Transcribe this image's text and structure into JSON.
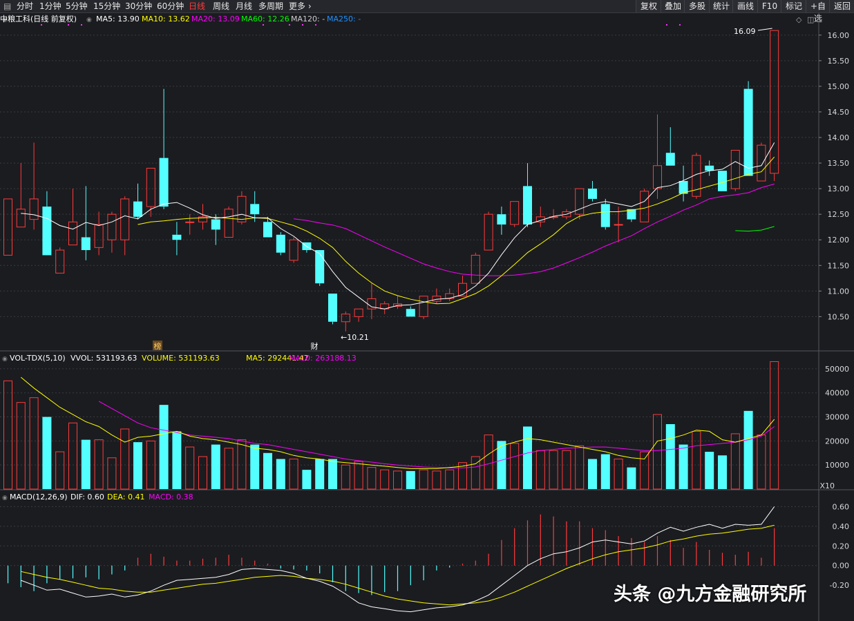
{
  "toolbar": {
    "left_items": [
      "分时",
      "1分钟",
      "5分钟",
      "15分钟",
      "30分钟",
      "60分钟",
      "日线",
      "周线",
      "月线",
      "多周期",
      "更多"
    ],
    "active": "日线",
    "right_items": [
      "复权",
      "叠加",
      "多股",
      "统计",
      "画线",
      "F10",
      "标记",
      "+自选",
      "返回"
    ]
  },
  "legend_price": {
    "title": "中粮工科(日线 前复权)",
    "items": [
      {
        "label": "MA5: 13.90",
        "color": "#ffffff"
      },
      {
        "label": "MA10: 13.62",
        "color": "#ffff00"
      },
      {
        "label": "MA20: 13.09",
        "color": "#ff00ff"
      },
      {
        "label": "MA60: 12.26",
        "color": "#00ff00"
      },
      {
        "label": "MA120: -",
        "color": "#cccccc"
      },
      {
        "label": "MA250: -",
        "color": "#1e90ff"
      }
    ]
  },
  "legend_volume": {
    "title": "VOL-TDX(5,10)",
    "items": [
      {
        "label": "VVOL: 531193.63",
        "color": "#ffffff"
      },
      {
        "label": "VOLUME: 531193.63",
        "color": "#ffff00"
      },
      {
        "label": "MA5: 292441.47",
        "color": "#ffff00"
      },
      {
        "label": "MA10: 263188.13",
        "color": "#ff00ff"
      }
    ]
  },
  "legend_macd": {
    "title": "MACD(12,26,9)",
    "items": [
      {
        "label": "DIF: 0.60",
        "color": "#ffffff"
      },
      {
        "label": "DEA: 0.41",
        "color": "#ffff00"
      },
      {
        "label": "MACD: 0.38",
        "color": "#ff00ff"
      }
    ]
  },
  "annotations": {
    "high_label": "16.09",
    "low_label": "10.21",
    "marker_bang": "榜",
    "marker_cai": "财",
    "volume_unit": "X10"
  },
  "watermark": "头条 @九方金融研究所",
  "colors": {
    "up": "#ff3b3b",
    "down": "#54ffff",
    "ma5": "#ffffff",
    "ma10": "#ffff00",
    "ma20": "#ff00ff",
    "ma60": "#00ff00",
    "grid": "#3a3b40"
  },
  "chart_data": [
    {
      "type": "candlestick",
      "title": "中粮工科(日线 前复权)",
      "y_ticks": [
        10.5,
        11.0,
        11.5,
        12.0,
        12.5,
        13.0,
        13.5,
        14.0,
        14.5,
        15.0,
        15.5,
        16.0
      ],
      "ylim": [
        10.1,
        16.2
      ],
      "candles": [
        {
          "o": 11.7,
          "h": 12.8,
          "l": 11.7,
          "c": 12.8
        },
        {
          "o": 12.25,
          "h": 13.5,
          "l": 12.25,
          "c": 12.6
        },
        {
          "o": 12.4,
          "h": 13.9,
          "l": 12.2,
          "c": 12.8
        },
        {
          "o": 12.65,
          "h": 12.95,
          "l": 11.7,
          "c": 11.7
        },
        {
          "o": 11.35,
          "h": 11.85,
          "l": 11.35,
          "c": 11.8
        },
        {
          "o": 11.9,
          "h": 13.0,
          "l": 11.9,
          "c": 12.35
        },
        {
          "o": 12.05,
          "h": 13.05,
          "l": 11.6,
          "c": 11.8
        },
        {
          "o": 11.85,
          "h": 12.55,
          "l": 11.7,
          "c": 12.3
        },
        {
          "o": 12.0,
          "h": 12.55,
          "l": 11.75,
          "c": 12.5
        },
        {
          "o": 12.0,
          "h": 12.85,
          "l": 11.7,
          "c": 12.8
        },
        {
          "o": 12.75,
          "h": 13.1,
          "l": 12.4,
          "c": 12.45
        },
        {
          "o": 12.65,
          "h": 13.4,
          "l": 12.45,
          "c": 13.4
        },
        {
          "o": 13.6,
          "h": 14.95,
          "l": 12.6,
          "c": 12.65
        },
        {
          "o": 12.1,
          "h": 12.35,
          "l": 11.7,
          "c": 12.0
        },
        {
          "o": 12.35,
          "h": 12.5,
          "l": 12.1,
          "c": 12.35
        },
        {
          "o": 12.35,
          "h": 12.7,
          "l": 12.2,
          "c": 12.45
        },
        {
          "o": 12.4,
          "h": 12.5,
          "l": 11.9,
          "c": 12.2
        },
        {
          "o": 12.05,
          "h": 12.65,
          "l": 12.05,
          "c": 12.6
        },
        {
          "o": 12.35,
          "h": 12.95,
          "l": 12.3,
          "c": 12.85
        },
        {
          "o": 12.7,
          "h": 12.95,
          "l": 12.35,
          "c": 12.5
        },
        {
          "o": 12.35,
          "h": 12.45,
          "l": 12.05,
          "c": 12.05
        },
        {
          "o": 12.1,
          "h": 12.15,
          "l": 11.7,
          "c": 11.75
        },
        {
          "o": 11.6,
          "h": 12.05,
          "l": 11.55,
          "c": 12.0
        },
        {
          "o": 11.95,
          "h": 11.95,
          "l": 11.75,
          "c": 11.8
        },
        {
          "o": 11.8,
          "h": 11.8,
          "l": 11.1,
          "c": 11.15
        },
        {
          "o": 10.95,
          "h": 10.95,
          "l": 10.35,
          "c": 10.4
        },
        {
          "o": 10.4,
          "h": 10.6,
          "l": 10.21,
          "c": 10.55
        },
        {
          "o": 10.5,
          "h": 10.65,
          "l": 10.4,
          "c": 10.65
        },
        {
          "o": 10.65,
          "h": 11.15,
          "l": 10.45,
          "c": 10.85
        },
        {
          "o": 10.65,
          "h": 10.8,
          "l": 10.55,
          "c": 10.75
        },
        {
          "o": 10.7,
          "h": 10.9,
          "l": 10.65,
          "c": 10.75
        },
        {
          "o": 10.65,
          "h": 10.7,
          "l": 10.5,
          "c": 10.5
        },
        {
          "o": 10.5,
          "h": 10.9,
          "l": 10.45,
          "c": 10.9
        },
        {
          "o": 10.8,
          "h": 11.05,
          "l": 10.75,
          "c": 10.9
        },
        {
          "o": 10.85,
          "h": 11.05,
          "l": 10.8,
          "c": 10.95
        },
        {
          "o": 10.9,
          "h": 11.3,
          "l": 10.9,
          "c": 11.15
        },
        {
          "o": 11.15,
          "h": 11.75,
          "l": 11.15,
          "c": 11.7
        },
        {
          "o": 11.8,
          "h": 12.55,
          "l": 11.8,
          "c": 12.5
        },
        {
          "o": 12.5,
          "h": 12.65,
          "l": 12.1,
          "c": 12.3
        },
        {
          "o": 12.3,
          "h": 12.75,
          "l": 12.25,
          "c": 12.75
        },
        {
          "o": 13.05,
          "h": 13.5,
          "l": 12.25,
          "c": 12.3
        },
        {
          "o": 12.35,
          "h": 12.65,
          "l": 12.25,
          "c": 12.45
        },
        {
          "o": 12.45,
          "h": 12.6,
          "l": 12.4,
          "c": 12.45
        },
        {
          "o": 12.45,
          "h": 12.6,
          "l": 12.4,
          "c": 12.55
        },
        {
          "o": 12.5,
          "h": 13.0,
          "l": 12.4,
          "c": 13.0
        },
        {
          "o": 13.0,
          "h": 13.15,
          "l": 12.75,
          "c": 12.8
        },
        {
          "o": 12.7,
          "h": 12.8,
          "l": 12.2,
          "c": 12.25
        },
        {
          "o": 12.3,
          "h": 12.65,
          "l": 11.95,
          "c": 12.3
        },
        {
          "o": 12.6,
          "h": 12.6,
          "l": 12.35,
          "c": 12.4
        },
        {
          "o": 12.35,
          "h": 13.0,
          "l": 12.35,
          "c": 12.95
        },
        {
          "o": 13.0,
          "h": 14.45,
          "l": 12.8,
          "c": 13.45
        },
        {
          "o": 13.7,
          "h": 14.2,
          "l": 13.45,
          "c": 13.45
        },
        {
          "o": 13.15,
          "h": 13.45,
          "l": 12.75,
          "c": 12.9
        },
        {
          "o": 12.85,
          "h": 13.7,
          "l": 12.8,
          "c": 13.65
        },
        {
          "o": 13.45,
          "h": 13.55,
          "l": 13.25,
          "c": 13.35
        },
        {
          "o": 13.35,
          "h": 13.35,
          "l": 12.95,
          "c": 12.95
        },
        {
          "o": 13.0,
          "h": 13.75,
          "l": 12.95,
          "c": 13.75
        },
        {
          "o": 14.95,
          "h": 15.1,
          "l": 13.25,
          "c": 13.25
        },
        {
          "o": 13.15,
          "h": 13.9,
          "l": 13.15,
          "c": 13.85
        },
        {
          "o": 13.3,
          "h": 16.09,
          "l": 13.15,
          "c": 16.09
        }
      ],
      "ma5": [
        12.52,
        12.49,
        12.42,
        12.28,
        12.21,
        12.34,
        12.28,
        12.35,
        12.47,
        12.41,
        12.6,
        12.7,
        12.73,
        12.62,
        12.49,
        12.42,
        12.45,
        12.5,
        12.43,
        12.43,
        12.22,
        12.07,
        11.87,
        11.73,
        11.38,
        11.07,
        10.88,
        10.69,
        10.65,
        10.72,
        10.73,
        10.78,
        10.84,
        10.86,
        10.93,
        11.1,
        11.35,
        11.71,
        12.04,
        12.3,
        12.38,
        12.46,
        12.5,
        12.6,
        12.7,
        12.75,
        12.7,
        12.65,
        12.75,
        13.02,
        13.06,
        13.16,
        13.28,
        13.35,
        13.38,
        13.53,
        13.4,
        13.45,
        13.9
      ],
      "ma10": [
        null,
        null,
        null,
        null,
        null,
        null,
        null,
        null,
        null,
        12.3,
        12.35,
        12.37,
        12.4,
        12.42,
        12.43,
        12.44,
        12.42,
        12.4,
        12.43,
        12.42,
        12.35,
        12.28,
        12.17,
        12.03,
        11.85,
        11.58,
        11.35,
        11.16,
        11.0,
        10.91,
        10.84,
        10.79,
        10.75,
        10.76,
        10.85,
        10.95,
        11.1,
        11.3,
        11.52,
        11.75,
        11.92,
        12.1,
        12.32,
        12.46,
        12.52,
        12.55,
        12.55,
        12.58,
        12.62,
        12.7,
        12.8,
        12.92,
        12.98,
        13.05,
        13.12,
        13.2,
        13.28,
        13.33,
        13.62
      ],
      "ma20": [
        null,
        null,
        null,
        null,
        null,
        null,
        null,
        null,
        null,
        null,
        null,
        null,
        null,
        null,
        null,
        null,
        null,
        null,
        null,
        12.41,
        12.38,
        12.33,
        12.29,
        12.22,
        12.1,
        11.98,
        11.86,
        11.75,
        11.64,
        11.53,
        11.45,
        11.38,
        11.33,
        11.31,
        11.3,
        11.3,
        11.31,
        11.34,
        11.38,
        11.45,
        11.55,
        11.65,
        11.76,
        11.88,
        11.98,
        12.08,
        12.22,
        12.35,
        12.46,
        12.58,
        12.68,
        12.8,
        12.85,
        12.88,
        12.92,
        13.02,
        13.09
      ],
      "ma60": [
        [
          56,
          12.18
        ],
        [
          57,
          12.17
        ],
        [
          58,
          12.19
        ],
        [
          59,
          12.26
        ]
      ]
    },
    {
      "type": "bar",
      "title": "VOL-TDX(5,10)",
      "y_ticks": [
        10000,
        20000,
        30000,
        40000,
        50000
      ],
      "ylim": [
        0,
        54000
      ],
      "volume_x10": [
        45000,
        36000,
        38000,
        30000,
        15500,
        27500,
        20500,
        20500,
        13000,
        25000,
        19500,
        20000,
        35000,
        24000,
        17500,
        13500,
        18500,
        17000,
        20500,
        18500,
        15000,
        12500,
        12500,
        8000,
        12500,
        12500,
        10000,
        11500,
        9000,
        8000,
        7500,
        7500,
        8000,
        7500,
        8000,
        11000,
        13500,
        22500,
        20000,
        19000,
        26000,
        16000,
        16000,
        16000,
        18000,
        12500,
        14500,
        12500,
        9000,
        15500,
        31000,
        27000,
        18500,
        24000,
        15500,
        14000,
        23000,
        32500,
        22500,
        53000
      ],
      "ma5": [
        46500,
        42000,
        38000,
        34000,
        31000,
        28000,
        26000,
        22500,
        19500,
        21500,
        22000,
        23000,
        24000,
        22000,
        21000,
        20500,
        19500,
        18500,
        17000,
        16500,
        15500,
        14000,
        13000,
        12500,
        11500,
        11000,
        10500,
        10000,
        9500,
        9000,
        8500,
        8500,
        8500,
        9000,
        9500,
        10500,
        14500,
        18000,
        19500,
        21000,
        20500,
        19500,
        18500,
        17500,
        16500,
        15500,
        14000,
        13000,
        12500,
        20000,
        21000,
        22500,
        24500,
        24000,
        20500,
        19500,
        21000,
        22500,
        29000
      ],
      "ma10": [
        null,
        null,
        null,
        null,
        null,
        null,
        36500,
        33500,
        30500,
        27500,
        25500,
        24500,
        23500,
        22500,
        22000,
        21500,
        21000,
        20000,
        19000,
        18500,
        17500,
        16500,
        15500,
        14500,
        13500,
        12500,
        11800,
        11200,
        10500,
        10000,
        9600,
        9200,
        9000,
        8800,
        8800,
        9200,
        10500,
        12000,
        13500,
        15000,
        16000,
        16500,
        17000,
        17200,
        17500,
        17500,
        17000,
        16500,
        16000,
        16000,
        16500,
        17000,
        18000,
        18500,
        19000,
        19500,
        20500,
        22000,
        26000
      ]
    },
    {
      "type": "bar",
      "title": "MACD(12,26,9)",
      "y_ticks": [
        0.0,
        0.2,
        0.4,
        0.6
      ],
      "ylim": [
        -0.55,
        0.68
      ],
      "macd": [
        -0.18,
        -0.22,
        -0.26,
        -0.18,
        -0.14,
        -0.13,
        -0.12,
        -0.14,
        -0.09,
        -0.05,
        0.08,
        0.12,
        0.09,
        0.05,
        0.05,
        0.07,
        0.08,
        0.11,
        0.08,
        0.05,
        0.02,
        -0.03,
        -0.04,
        -0.05,
        -0.08,
        -0.17,
        -0.26,
        -0.28,
        -0.3,
        -0.27,
        -0.26,
        -0.2,
        -0.15,
        -0.05,
        -0.02,
        0.02,
        0.05,
        0.12,
        0.26,
        0.38,
        0.46,
        0.52,
        0.5,
        0.45,
        0.45,
        0.38,
        0.36,
        0.3,
        0.28,
        0.24,
        0.3,
        0.26,
        0.18,
        0.24,
        0.16,
        0.13,
        0.11,
        0.14,
        0.08,
        0.38
      ],
      "dif": [
        -0.15,
        -0.2,
        -0.25,
        -0.24,
        -0.28,
        -0.32,
        -0.31,
        -0.29,
        -0.32,
        -0.3,
        -0.26,
        -0.2,
        -0.15,
        -0.14,
        -0.13,
        -0.12,
        -0.09,
        -0.04,
        -0.03,
        -0.04,
        -0.05,
        -0.08,
        -0.13,
        -0.16,
        -0.21,
        -0.29,
        -0.38,
        -0.42,
        -0.44,
        -0.46,
        -0.47,
        -0.45,
        -0.43,
        -0.42,
        -0.4,
        -0.36,
        -0.3,
        -0.2,
        -0.1,
        0.0,
        0.07,
        0.12,
        0.14,
        0.18,
        0.24,
        0.26,
        0.24,
        0.22,
        0.25,
        0.33,
        0.39,
        0.35,
        0.39,
        0.42,
        0.38,
        0.42,
        0.41,
        0.42,
        0.6
      ],
      "dea": [
        -0.06,
        -0.09,
        -0.12,
        -0.14,
        -0.17,
        -0.2,
        -0.23,
        -0.24,
        -0.26,
        -0.27,
        -0.27,
        -0.25,
        -0.23,
        -0.21,
        -0.19,
        -0.18,
        -0.16,
        -0.14,
        -0.12,
        -0.11,
        -0.1,
        -0.11,
        -0.13,
        -0.14,
        -0.16,
        -0.19,
        -0.23,
        -0.27,
        -0.31,
        -0.34,
        -0.36,
        -0.38,
        -0.39,
        -0.4,
        -0.39,
        -0.38,
        -0.36,
        -0.32,
        -0.27,
        -0.21,
        -0.15,
        -0.09,
        -0.03,
        0.02,
        0.07,
        0.11,
        0.14,
        0.16,
        0.18,
        0.21,
        0.25,
        0.27,
        0.3,
        0.32,
        0.33,
        0.35,
        0.37,
        0.38,
        0.41
      ]
    }
  ]
}
